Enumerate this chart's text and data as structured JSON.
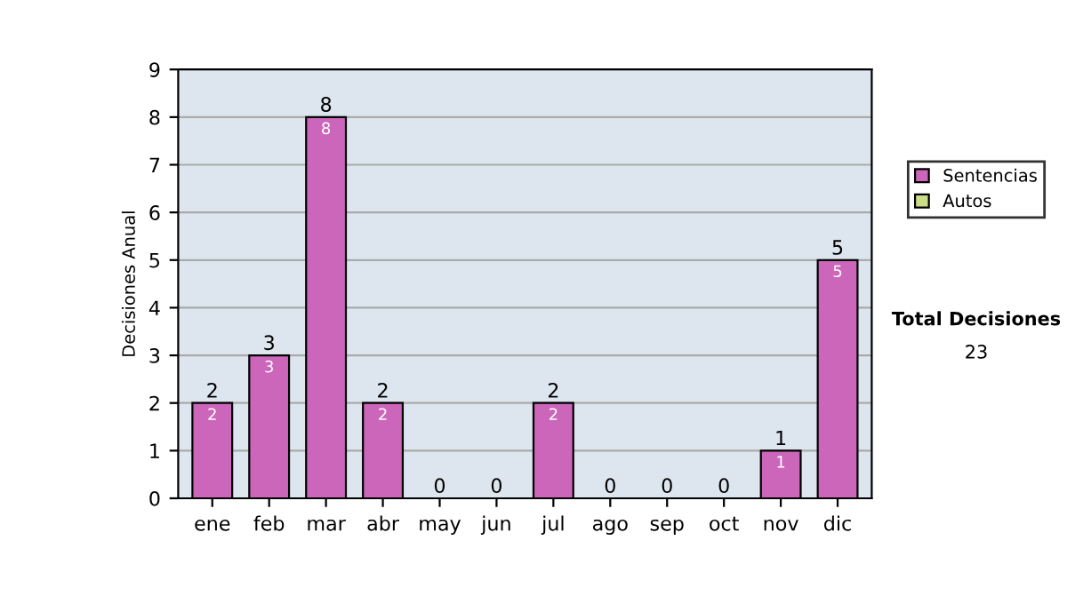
{
  "chart_data": {
    "type": "bar",
    "stacked": true,
    "ylabel": "Decisiones Anual",
    "categories": [
      "ene",
      "feb",
      "mar",
      "abr",
      "may",
      "jun",
      "jul",
      "ago",
      "sep",
      "oct",
      "nov",
      "dic"
    ],
    "series": [
      {
        "name": "Sentencias",
        "color": "#cc66bb",
        "values": [
          2,
          3,
          8,
          2,
          0,
          0,
          2,
          0,
          0,
          0,
          1,
          5
        ],
        "value_labels": [
          "2",
          "3",
          "8",
          "2",
          null,
          null,
          "2",
          null,
          null,
          null,
          "1",
          "5"
        ]
      },
      {
        "name": "Autos",
        "color": "#ccdd88",
        "values": [
          0,
          0,
          0,
          0,
          0,
          0,
          0,
          0,
          0,
          0,
          0,
          0
        ]
      }
    ],
    "totals": [
      "2",
      "3",
      "8",
      "2",
      "0",
      "0",
      "2",
      "0",
      "0",
      "0",
      "1",
      "5"
    ],
    "ylim": [
      0,
      9
    ],
    "yticks": [
      0,
      1,
      2,
      3,
      4,
      5,
      6,
      7,
      8,
      9
    ],
    "grid": "y",
    "legend": "right",
    "annotations": [
      "Total Decisiones",
      "23"
    ]
  }
}
